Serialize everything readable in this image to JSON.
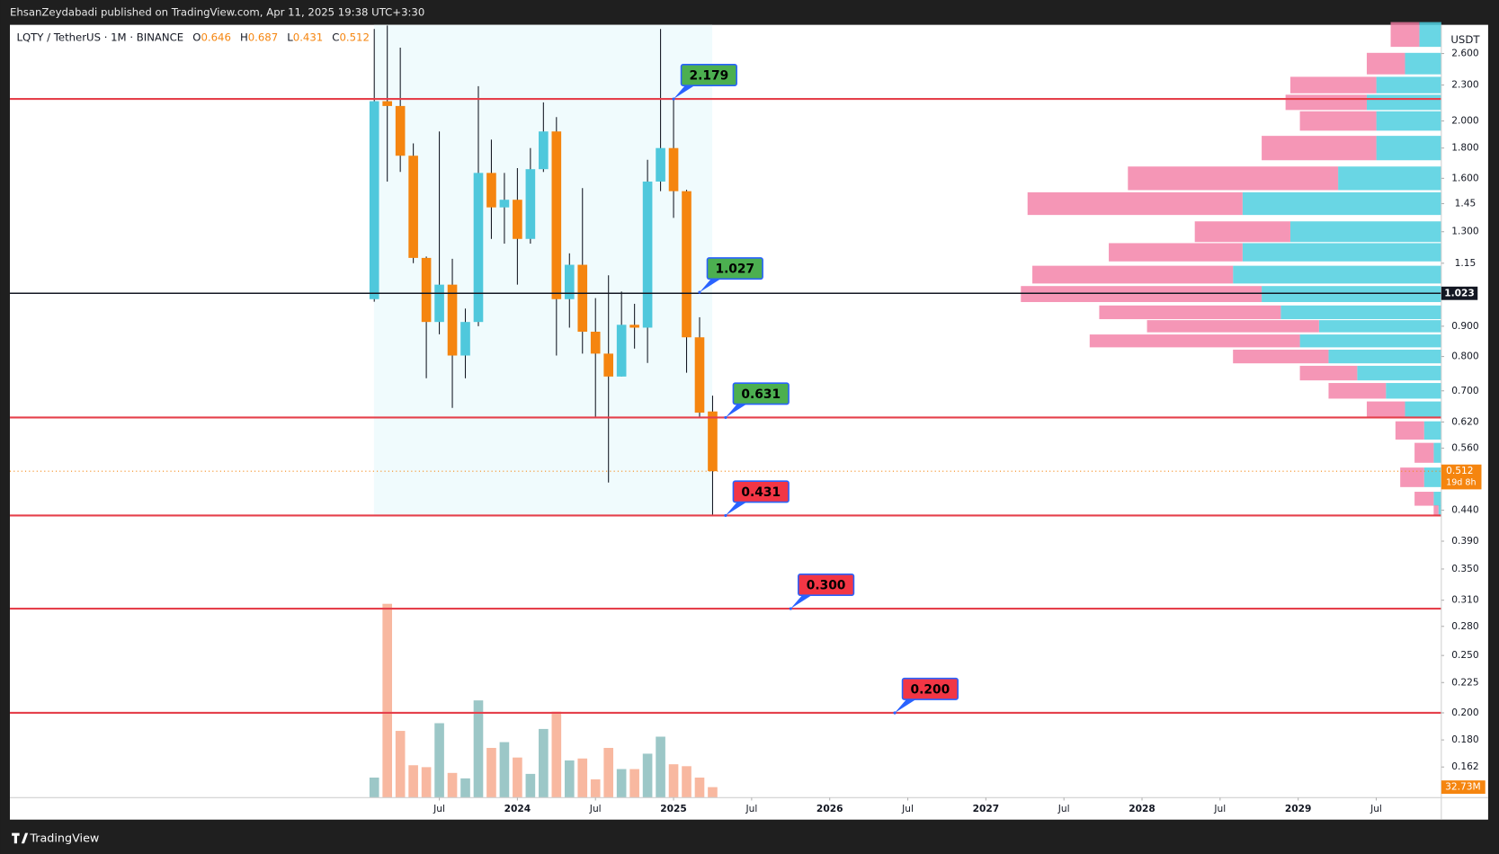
{
  "header": {
    "published": "EhsanZeydabadi published on TradingView.com, Apr 11, 2025 19:38 UTC+3:30",
    "brand": "TradingView"
  },
  "chart_data": {
    "type": "candlestick",
    "symbol": "LQTY / TetherUS · 1M · BINANCE",
    "ohlc_keys": [
      "O",
      "H",
      "L",
      "C"
    ],
    "axis_unit": "USDT",
    "log_scale": true,
    "grid": false,
    "up_color": "#4fc8dc",
    "down_color": "#f5850f",
    "volume_up_color": "#9cc7c7",
    "volume_down_color": "#f8b8a0",
    "x": [
      "2023-02",
      "2023-03",
      "2023-04",
      "2023-05",
      "2023-06",
      "2023-07",
      "2023-08",
      "2023-09",
      "2023-10",
      "2023-11",
      "2023-12",
      "2024-01",
      "2024-02",
      "2024-03",
      "2024-04",
      "2024-05",
      "2024-06",
      "2024-07",
      "2024-08",
      "2024-09",
      "2024-10",
      "2024-11",
      "2024-12",
      "2025-01",
      "2025-02",
      "2025-03",
      "2025-04"
    ],
    "open": [
      1.0,
      2.16,
      2.12,
      1.747,
      1.174,
      0.915,
      1.058,
      0.803,
      0.915,
      1.634,
      1.429,
      1.472,
      1.264,
      1.658,
      1.92,
      1.0,
      1.143,
      0.881,
      0.809,
      0.74,
      0.905,
      0.895,
      1.58,
      1.8,
      1.522,
      0.862,
      0.646
    ],
    "high": [
      2.86,
      2.9,
      2.66,
      1.833,
      1.18,
      1.92,
      1.17,
      0.964,
      2.29,
      1.86,
      1.634,
      1.665,
      1.8,
      2.15,
      2.03,
      1.195,
      1.54,
      1.004,
      1.097,
      1.03,
      0.982,
      1.72,
      2.86,
      2.18,
      1.53,
      0.932,
      0.687
    ],
    "low": [
      0.99,
      1.58,
      1.64,
      1.15,
      0.735,
      0.872,
      0.655,
      0.735,
      0.9,
      1.264,
      1.241,
      1.058,
      1.241,
      1.64,
      0.803,
      0.895,
      0.809,
      0.631,
      0.49,
      0.74,
      0.825,
      0.78,
      1.522,
      1.372,
      0.751,
      0.631,
      0.431
    ],
    "close": [
      2.16,
      2.12,
      1.747,
      1.174,
      0.915,
      1.058,
      0.803,
      0.915,
      1.634,
      1.429,
      1.472,
      1.264,
      1.658,
      1.92,
      1.0,
      1.143,
      0.881,
      0.809,
      0.74,
      0.905,
      0.895,
      1.58,
      1.8,
      1.522,
      0.862,
      0.643,
      0.512
    ],
    "volume": [
      62.5,
      604,
      208,
      101,
      95,
      232,
      77,
      60,
      303,
      155,
      173,
      125,
      74,
      214,
      268,
      116,
      122,
      57,
      155,
      89,
      89,
      137,
      190,
      104,
      98,
      62.5,
      32.73
    ],
    "volume_last_label": "32.73M",
    "volume_ylim": [
      0,
      640
    ],
    "countdown": "19d 8h",
    "current_line": 1.023,
    "xlim": [
      "2020-10",
      "2029-12"
    ],
    "xticks": [
      {
        "value": "2023-07",
        "label": "Jul"
      },
      {
        "value": "2024-01",
        "label": "2024"
      },
      {
        "value": "2024-07",
        "label": "Jul"
      },
      {
        "value": "2025-01",
        "label": "2025"
      },
      {
        "value": "2025-07",
        "label": "Jul"
      },
      {
        "value": "2026-01",
        "label": "2026"
      },
      {
        "value": "2026-07",
        "label": "Jul"
      },
      {
        "value": "2027-01",
        "label": "2027"
      },
      {
        "value": "2027-07",
        "label": "Jul"
      },
      {
        "value": "2028-01",
        "label": "2028"
      },
      {
        "value": "2028-07",
        "label": "Jul"
      },
      {
        "value": "2029-01",
        "label": "2029"
      },
      {
        "value": "2029-07",
        "label": "Jul"
      }
    ],
    "ylim": [
      0.1438,
      2.907
    ],
    "yticks": [
      {
        "value": 2.6,
        "label": "2.600"
      },
      {
        "value": 2.3,
        "label": "2.300"
      },
      {
        "value": 2,
        "label": "2.000"
      },
      {
        "value": 1.8,
        "label": "1.800"
      },
      {
        "value": 1.6,
        "label": "1.600"
      },
      1.45,
      {
        "value": 1.3,
        "label": "1.300"
      },
      1.15,
      {
        "value": 0.9,
        "label": "0.900"
      },
      {
        "value": 0.8,
        "label": "0.800"
      },
      {
        "value": 0.7,
        "label": "0.700"
      },
      {
        "value": 0.62,
        "label": "0.620"
      },
      {
        "value": 0.56,
        "label": "0.560"
      },
      {
        "value": 0.44,
        "label": "0.440"
      },
      {
        "value": 0.39,
        "label": "0.390"
      },
      {
        "value": 0.35,
        "label": "0.350"
      },
      {
        "value": 0.31,
        "label": "0.310"
      },
      {
        "value": 0.28,
        "label": "0.280"
      },
      {
        "value": 0.25,
        "label": "0.250"
      },
      0.225,
      {
        "value": 0.2,
        "label": "0.200"
      },
      {
        "value": 0.18,
        "label": "0.180"
      },
      0.162
    ],
    "levels": [
      {
        "price": 2.179,
        "x": "2025-01",
        "color": "#4caf50",
        "line_color": "#e5404b"
      },
      {
        "price": 1.027,
        "x": "2025-03",
        "color": "#4caf50"
      },
      {
        "price": 0.631,
        "x": "2025-05",
        "color": "#4caf50",
        "line_color": "#e5404b"
      },
      {
        "price": 0.431,
        "x": "2025-05",
        "color": "#f23645",
        "line_color": "#e5404b"
      },
      {
        "price": {
          "value": 0.3,
          "label": "0.300"
        },
        "x": "2025-10",
        "color": "#f23645",
        "line_color": "#e5404b"
      },
      {
        "price": {
          "value": 0.2,
          "label": "0.200"
        },
        "x": "2026-06",
        "color": "#f23645",
        "line_color": "#e5404b"
      }
    ],
    "volume_profile": {
      "up_color": "#4fcfdf",
      "down_color": "#f27ca4",
      "xlim": [
        0,
        440
      ],
      "price": [
        2.8,
        2.5,
        2.3,
        2.15,
        2.0,
        1.8,
        1.6,
        1.45,
        1.3,
        1.2,
        1.1,
        1.02,
        0.95,
        0.9,
        0.85,
        0.8,
        0.75,
        0.7,
        0.65,
        0.6,
        0.55,
        0.5,
        0.46,
        0.44
      ],
      "up": [
        23,
        38,
        68,
        78,
        68,
        68,
        108,
        208,
        158,
        208,
        218,
        188,
        168,
        128,
        148,
        118,
        88,
        58,
        38,
        18,
        8,
        18,
        8,
        3
      ],
      "down": [
        30,
        40,
        90,
        85,
        80,
        120,
        220,
        225,
        100,
        140,
        210,
        252,
        190,
        180,
        220,
        100,
        60,
        60,
        40,
        30,
        20,
        25,
        20,
        5
      ]
    }
  }
}
